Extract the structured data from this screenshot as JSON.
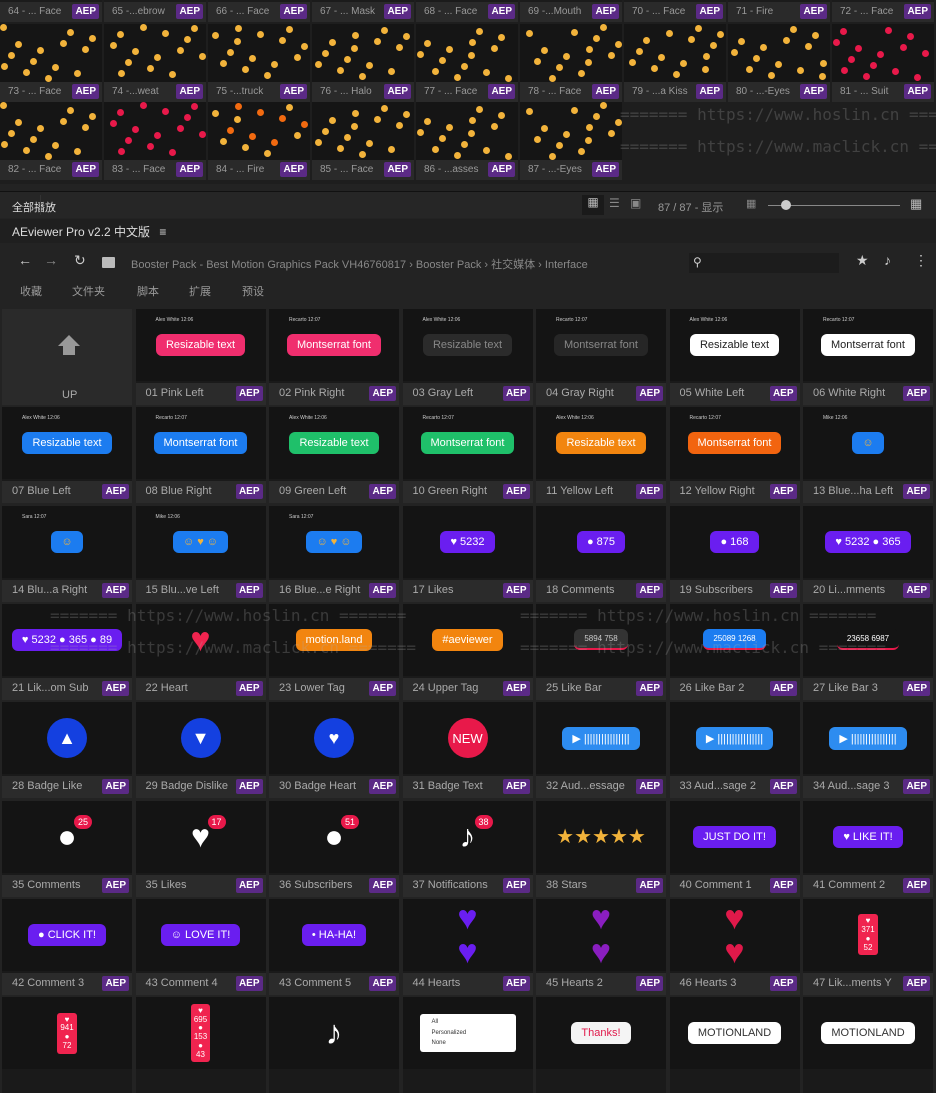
{
  "strip": {
    "badge": "AEP",
    "rows": [
      [
        "64 - ... Face",
        "65 -...ebrow",
        "66 - ... Face",
        "67 - ... Mask",
        "68 - ... Face",
        "69 -...Mouth",
        "70 - ... Face",
        "71 - Fire",
        "72 - ... Face"
      ],
      [
        "73 - ... Face",
        "74 -...weat",
        "75 -...truck",
        "76 - ... Halo",
        "77 - ... Face",
        "78 - ... Face",
        "79 - ...a Kiss",
        "80 - ...-Eyes",
        "81 - ... Suit"
      ],
      [
        "82 - ... Face",
        "83 - ... Face",
        "84 - ... Fire",
        "85 - ... Face",
        "86 - ...asses",
        "87 - ...-Eyes"
      ]
    ]
  },
  "watermarks": [
    "======= https://www.hoslin.cn =======",
    "======= https://www.maclick.cn ======="
  ],
  "toolbar": {
    "play_all": "全部播放",
    "count": "87 / 87 - 显示",
    "slider_value": 0.1
  },
  "app": {
    "title": "AEviewer Pro v2.2 中文版",
    "menu_icon": "≡"
  },
  "nav": {
    "breadcrumb": [
      "Booster Pack - Best Motion Graphics Pack VH46760817",
      "Booster Pack",
      "社交媒体",
      "Interface"
    ],
    "search_placeholder": ""
  },
  "tabs": [
    "收藏",
    "文件夹",
    "脚本",
    "扩展",
    "预设"
  ],
  "grid": {
    "up_label": "UP",
    "badge": "AEP",
    "items": [
      {
        "label": "01 Pink Left",
        "k": "pill",
        "text": "Resizable text",
        "bg": "#f02e6e",
        "fg": "#fff",
        "meta": "Alex White 12:06"
      },
      {
        "label": "02 Pink Right",
        "k": "pill",
        "text": "Montserrat font",
        "bg": "#f02e6e",
        "fg": "#fff",
        "meta": "Recarto 12:07"
      },
      {
        "label": "03 Gray Left",
        "k": "pill",
        "text": "Resizable text",
        "bg": "#2b2b2b",
        "fg": "#888",
        "meta": "Alex White 12:06"
      },
      {
        "label": "04 Gray Right",
        "k": "pill",
        "text": "Montserrat font",
        "bg": "#262626",
        "fg": "#888",
        "meta": "Recarto 12:07"
      },
      {
        "label": "05 White Left",
        "k": "pill",
        "text": "Resizable text",
        "bg": "#ffffff",
        "fg": "#222",
        "meta": "Alex White 12:06"
      },
      {
        "label": "06 White Right",
        "k": "pill",
        "text": "Montserrat font",
        "bg": "#ffffff",
        "fg": "#222",
        "meta": "Recarto 12:07"
      },
      {
        "label": "07 Blue Left",
        "k": "pill",
        "text": "Resizable text",
        "bg": "#1c7cf0",
        "fg": "#fff",
        "meta": "Alex White 12:06"
      },
      {
        "label": "08 Blue Right",
        "k": "pill",
        "text": "Montserrat font",
        "bg": "#1c7cf0",
        "fg": "#fff",
        "meta": "Recarto 12:07"
      },
      {
        "label": "09 Green Left",
        "k": "pill",
        "text": "Resizable text",
        "bg": "#1fc06a",
        "fg": "#fff",
        "meta": "Alex White 12:06"
      },
      {
        "label": "10 Green Right",
        "k": "pill",
        "text": "Montserrat font",
        "bg": "#1fc06a",
        "fg": "#fff",
        "meta": "Recarto 12:07"
      },
      {
        "label": "11 Yellow Left",
        "k": "pill",
        "text": "Resizable text",
        "bg": "#f2850f",
        "fg": "#fff",
        "meta": "Alex White 12:06"
      },
      {
        "label": "12 Yellow Right",
        "k": "pill",
        "text": "Montserrat font",
        "bg": "#f2640f",
        "fg": "#fff",
        "meta": "Recarto 12:07"
      },
      {
        "label": "13 Blue...ha Left",
        "k": "pill",
        "text": "☺",
        "bg": "#1c7cf0",
        "fg": "#f2b33b",
        "meta": "Mike 12:06"
      },
      {
        "label": "14 Blu...a Right",
        "k": "pill",
        "text": "☺",
        "bg": "#1c7cf0",
        "fg": "#f2b33b",
        "meta": "Sara 12:07"
      },
      {
        "label": "15 Blu...ve Left",
        "k": "pill",
        "text": "☺ ♥ ☺",
        "bg": "#1c7cf0",
        "fg": "#f2b33b",
        "meta": "Mike 12:06"
      },
      {
        "label": "16 Blue...e Right",
        "k": "pill",
        "text": "☺ ♥ ☺",
        "bg": "#1c7cf0",
        "fg": "#f2b33b",
        "meta": "Sara 12:07"
      },
      {
        "label": "17 Likes",
        "k": "pill",
        "text": "♥ 5232",
        "bg": "#6a1ef0",
        "fg": "#fff"
      },
      {
        "label": "18 Comments",
        "k": "pill",
        "text": "● 875",
        "bg": "#6a1ef0",
        "fg": "#fff"
      },
      {
        "label": "19 Subscribers",
        "k": "pill",
        "text": "● 168",
        "bg": "#6a1ef0",
        "fg": "#fff"
      },
      {
        "label": "20 Li...mments",
        "k": "pill",
        "text": "♥ 5232 ● 365",
        "bg": "#6a1ef0",
        "fg": "#fff"
      },
      {
        "label": "21 Lik...om Sub",
        "k": "pill",
        "text": "♥ 5232 ● 365 ● 89",
        "bg": "#6a1ef0",
        "fg": "#fff"
      },
      {
        "label": "22 Heart",
        "k": "big",
        "text": "♥",
        "fg": "#f0244f"
      },
      {
        "label": "23 Lower Tag",
        "k": "pill",
        "text": "motion.land",
        "bg": "#f2850f",
        "fg": "#fff"
      },
      {
        "label": "24 Upper Tag",
        "k": "pill",
        "text": "#aeviewer",
        "bg": "#f2850f",
        "fg": "#fff"
      },
      {
        "label": "25 Like Bar",
        "k": "bar",
        "text": "5894   758",
        "bg": "#333",
        "fg": "#ccc"
      },
      {
        "label": "26 Like Bar 2",
        "k": "bar",
        "text": "25089   1268",
        "bg": "#1c7cf0",
        "fg": "#fff"
      },
      {
        "label": "27 Like Bar 3",
        "k": "bar",
        "text": "23658   6987",
        "bg": "#141414",
        "fg": "#fff"
      },
      {
        "label": "28 Badge Like",
        "k": "circ",
        "text": "▲",
        "bg": "#1440e0"
      },
      {
        "label": "29 Badge Dislike",
        "k": "circ",
        "text": "▼",
        "bg": "#1440e0"
      },
      {
        "label": "30 Badge Heart",
        "k": "circ",
        "text": "♥",
        "bg": "#1440e0"
      },
      {
        "label": "31 Badge Text",
        "k": "circ",
        "text": "NEW",
        "bg": "#e8194a"
      },
      {
        "label": "32 Aud...essage",
        "k": "pill",
        "text": "▶ ||||||||||||||||",
        "bg": "#2d8cf0",
        "fg": "#fff"
      },
      {
        "label": "33 Aud...sage 2",
        "k": "pill",
        "text": "▶ ||||||||||||||||",
        "bg": "#2d8cf0",
        "fg": "#fff"
      },
      {
        "label": "34 Aud...sage 3",
        "k": "pill",
        "text": "▶ ||||||||||||||||",
        "bg": "#2d8cf0",
        "fg": "#fff"
      },
      {
        "label": "35 Comments",
        "k": "notif",
        "text": "●",
        "count": "25"
      },
      {
        "label": "35 Likes",
        "k": "notif",
        "text": "♥",
        "count": "17"
      },
      {
        "label": "36 Subscribers",
        "k": "notif",
        "text": "●",
        "count": "51"
      },
      {
        "label": "37 Notifications",
        "k": "notif",
        "text": "♪",
        "count": "38"
      },
      {
        "label": "38 Stars",
        "k": "big",
        "text": "★★★★★",
        "fg": "#f2b33b"
      },
      {
        "label": "40 Comment 1",
        "k": "pill",
        "text": "JUST DO IT!",
        "bg": "#6a1ef0",
        "fg": "#fff"
      },
      {
        "label": "41 Comment 2",
        "k": "pill",
        "text": "♥ LIKE IT!",
        "bg": "#6a1ef0",
        "fg": "#fff"
      },
      {
        "label": "42 Comment 3",
        "k": "pill",
        "text": "● CLICK IT!",
        "bg": "#6a1ef0",
        "fg": "#fff"
      },
      {
        "label": "43 Comment 4",
        "k": "pill",
        "text": "☺ LOVE IT!",
        "bg": "#6a1ef0",
        "fg": "#fff"
      },
      {
        "label": "43 Comment 5",
        "k": "pill",
        "text": "• HA-HA!",
        "bg": "#6a1ef0",
        "fg": "#fff"
      },
      {
        "label": "44 Hearts",
        "k": "big",
        "text": "♥\n♥",
        "fg": "#6a1ef0"
      },
      {
        "label": "45 Hearts 2",
        "k": "big",
        "text": "♥\n♥",
        "fg": "#8a1ec0"
      },
      {
        "label": "46 Hearts 3",
        "k": "big",
        "text": "♥\n♥",
        "fg": "#e0194a"
      },
      {
        "label": "47 Lik...ments Y",
        "k": "vbar",
        "text": "♥\n371\n●\n52",
        "bg": "#f0244f",
        "fg": "#fff"
      },
      {
        "label": "",
        "k": "vbar",
        "text": "♥\n941\n●\n72",
        "bg": "#f0244f",
        "fg": "#fff"
      },
      {
        "label": "",
        "k": "vbar",
        "text": "♥\n695\n●\n153\n●\n43",
        "bg": "#f0244f",
        "fg": "#fff"
      },
      {
        "label": "",
        "k": "big",
        "text": "♪",
        "fg": "#fff"
      },
      {
        "label": "",
        "k": "menu",
        "text": "All\nPersonalized\nNone",
        "bg": "#fff",
        "fg": "#333"
      },
      {
        "label": "",
        "k": "pill",
        "text": "Thanks!",
        "bg": "#f4f4f4",
        "fg": "#e0194a"
      },
      {
        "label": "",
        "k": "pill",
        "text": "MOTIONLAND",
        "bg": "#fff",
        "fg": "#333"
      },
      {
        "label": "",
        "k": "pill",
        "text": "MOTIONLAND",
        "bg": "#fff",
        "fg": "#333"
      }
    ]
  }
}
